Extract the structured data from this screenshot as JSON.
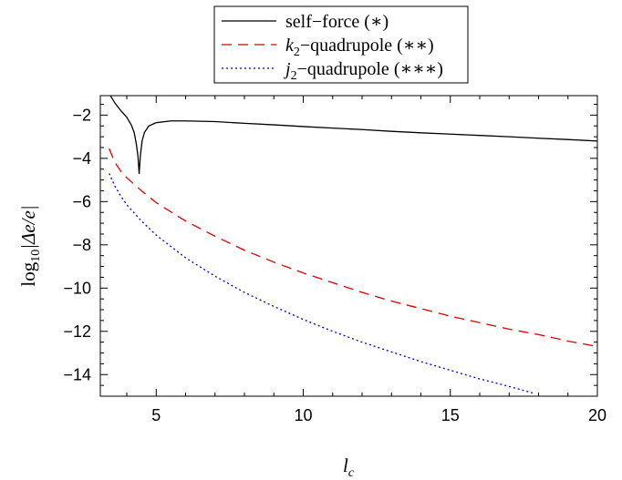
{
  "chart_data": {
    "type": "line",
    "xlabel": "l_c",
    "ylabel": "log10|Δe/e|",
    "xlim": [
      3.1,
      20
    ],
    "ylim": [
      -15,
      -1.1
    ],
    "x_ticks": [
      5,
      10,
      15,
      20
    ],
    "y_ticks": [
      -2,
      -4,
      -6,
      -8,
      -10,
      -12,
      -14
    ],
    "grid": false,
    "legend_position": "top-center",
    "series": [
      {
        "name": "self−force (∗)",
        "color": "#000000",
        "dash": "solid",
        "points": [
          [
            3.4,
            -1.0
          ],
          [
            3.6,
            -1.45
          ],
          [
            3.8,
            -1.8
          ],
          [
            4.0,
            -2.1
          ],
          [
            4.15,
            -2.45
          ],
          [
            4.25,
            -2.8
          ],
          [
            4.32,
            -3.3
          ],
          [
            4.38,
            -3.9
          ],
          [
            4.42,
            -4.72
          ],
          [
            4.46,
            -3.9
          ],
          [
            4.52,
            -3.2
          ],
          [
            4.6,
            -2.8
          ],
          [
            4.75,
            -2.5
          ],
          [
            5.0,
            -2.35
          ],
          [
            5.5,
            -2.27
          ],
          [
            6.0,
            -2.27
          ],
          [
            7,
            -2.3
          ],
          [
            8,
            -2.38
          ],
          [
            9,
            -2.45
          ],
          [
            10,
            -2.53
          ],
          [
            11,
            -2.6
          ],
          [
            12,
            -2.67
          ],
          [
            13,
            -2.75
          ],
          [
            14,
            -2.82
          ],
          [
            15,
            -2.88
          ],
          [
            16,
            -2.94
          ],
          [
            17,
            -3.0
          ],
          [
            18,
            -3.07
          ],
          [
            19,
            -3.13
          ],
          [
            20,
            -3.2
          ]
        ]
      },
      {
        "name": "k2−quadrupole (∗∗)",
        "color": "#dd0000",
        "dash": "dashed",
        "points": [
          [
            3.4,
            -3.55
          ],
          [
            3.6,
            -4.2
          ],
          [
            3.8,
            -4.6
          ],
          [
            4.0,
            -4.9
          ],
          [
            4.5,
            -5.5
          ],
          [
            5,
            -6.05
          ],
          [
            6,
            -6.9
          ],
          [
            7,
            -7.6
          ],
          [
            8,
            -8.25
          ],
          [
            9,
            -8.8
          ],
          [
            10,
            -9.3
          ],
          [
            11,
            -9.75
          ],
          [
            12,
            -10.2
          ],
          [
            13,
            -10.6
          ],
          [
            14,
            -10.95
          ],
          [
            15,
            -11.3
          ],
          [
            16,
            -11.6
          ],
          [
            17,
            -11.9
          ],
          [
            18,
            -12.15
          ],
          [
            19,
            -12.45
          ],
          [
            20,
            -12.7
          ]
        ]
      },
      {
        "name": "j2−quadrupole (∗∗∗)",
        "color": "#0000cc",
        "dash": "dotted",
        "points": [
          [
            3.4,
            -4.7
          ],
          [
            3.6,
            -5.3
          ],
          [
            3.8,
            -5.75
          ],
          [
            4.0,
            -6.15
          ],
          [
            4.5,
            -6.9
          ],
          [
            5,
            -7.55
          ],
          [
            6,
            -8.6
          ],
          [
            7,
            -9.45
          ],
          [
            8,
            -10.2
          ],
          [
            9,
            -10.85
          ],
          [
            10,
            -11.45
          ],
          [
            11,
            -12.0
          ],
          [
            12,
            -12.5
          ],
          [
            13,
            -12.95
          ],
          [
            14,
            -13.4
          ],
          [
            15,
            -13.8
          ],
          [
            16,
            -14.2
          ],
          [
            17,
            -14.55
          ],
          [
            17.8,
            -14.85
          ]
        ]
      }
    ]
  },
  "legend": {
    "items": [
      {
        "main": "self−force (∗)"
      },
      {
        "sym": "k",
        "sub": "2",
        "rest": "−quadrupole (∗∗)"
      },
      {
        "sym": "j",
        "sub": "2",
        "rest": "−quadrupole (∗∗∗)"
      }
    ]
  },
  "axes": {
    "ylabel_log": "log",
    "ylabel_sub": "10",
    "ylabel_rest": "|Δe/e|",
    "xlabel_sym": "l",
    "xlabel_sub": "c"
  }
}
